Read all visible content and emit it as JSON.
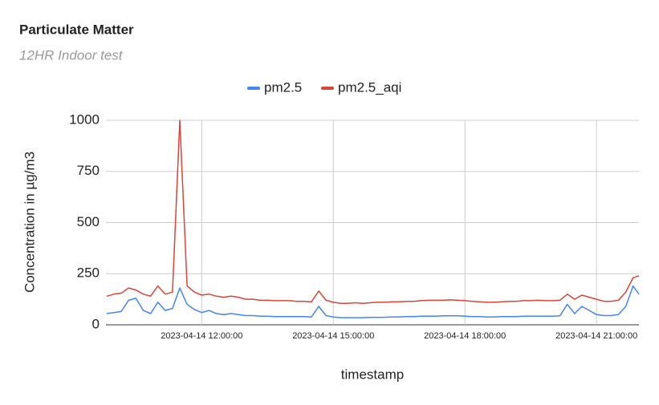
{
  "chart_data": {
    "type": "line",
    "title": "Particulate Matter",
    "subtitle": "12HR Indoor test",
    "x_label": "timestamp",
    "y_label": "Concentration in µg/m3",
    "x": [
      "2023-04-14 09:50:00",
      "2023-04-14 10:00:00",
      "2023-04-14 10:10:00",
      "2023-04-14 10:20:00",
      "2023-04-14 10:30:00",
      "2023-04-14 10:40:00",
      "2023-04-14 10:50:00",
      "2023-04-14 11:00:00",
      "2023-04-14 11:10:00",
      "2023-04-14 11:20:00",
      "2023-04-14 11:30:00",
      "2023-04-14 11:40:00",
      "2023-04-14 11:50:00",
      "2023-04-14 12:00:00",
      "2023-04-14 12:10:00",
      "2023-04-14 12:20:00",
      "2023-04-14 12:30:00",
      "2023-04-14 12:40:00",
      "2023-04-14 12:50:00",
      "2023-04-14 13:00:00",
      "2023-04-14 13:10:00",
      "2023-04-14 13:20:00",
      "2023-04-14 13:30:00",
      "2023-04-14 13:40:00",
      "2023-04-14 13:50:00",
      "2023-04-14 14:00:00",
      "2023-04-14 14:10:00",
      "2023-04-14 14:20:00",
      "2023-04-14 14:30:00",
      "2023-04-14 14:40:00",
      "2023-04-14 14:50:00",
      "2023-04-14 15:00:00",
      "2023-04-14 15:10:00",
      "2023-04-14 15:20:00",
      "2023-04-14 15:30:00",
      "2023-04-14 15:40:00",
      "2023-04-14 15:50:00",
      "2023-04-14 16:00:00",
      "2023-04-14 16:10:00",
      "2023-04-14 16:20:00",
      "2023-04-14 16:30:00",
      "2023-04-14 16:40:00",
      "2023-04-14 16:50:00",
      "2023-04-14 17:00:00",
      "2023-04-14 17:10:00",
      "2023-04-14 17:20:00",
      "2023-04-14 17:30:00",
      "2023-04-14 17:40:00",
      "2023-04-14 17:50:00",
      "2023-04-14 18:00:00",
      "2023-04-14 18:10:00",
      "2023-04-14 18:20:00",
      "2023-04-14 18:30:00",
      "2023-04-14 18:40:00",
      "2023-04-14 18:50:00",
      "2023-04-14 19:00:00",
      "2023-04-14 19:10:00",
      "2023-04-14 19:20:00",
      "2023-04-14 19:30:00",
      "2023-04-14 19:40:00",
      "2023-04-14 19:50:00",
      "2023-04-14 20:00:00",
      "2023-04-14 20:10:00",
      "2023-04-14 20:20:00",
      "2023-04-14 20:30:00",
      "2023-04-14 20:40:00",
      "2023-04-14 20:50:00",
      "2023-04-14 21:00:00",
      "2023-04-14 21:10:00",
      "2023-04-14 21:20:00",
      "2023-04-14 21:30:00",
      "2023-04-14 21:40:00",
      "2023-04-14 21:50:00",
      "2023-04-14 21:58:00"
    ],
    "series": [
      {
        "name": "pm2.5",
        "color": "#4285f4",
        "values": [
          55,
          60,
          65,
          120,
          130,
          70,
          55,
          110,
          70,
          80,
          180,
          100,
          75,
          60,
          70,
          55,
          50,
          55,
          50,
          45,
          45,
          42,
          42,
          40,
          40,
          40,
          40,
          40,
          38,
          90,
          45,
          38,
          35,
          35,
          35,
          35,
          36,
          36,
          37,
          38,
          38,
          40,
          40,
          42,
          42,
          42,
          44,
          44,
          44,
          42,
          40,
          40,
          38,
          38,
          40,
          40,
          40,
          42,
          42,
          42,
          42,
          42,
          44,
          100,
          55,
          90,
          70,
          50,
          45,
          45,
          50,
          90,
          190,
          150
        ]
      },
      {
        "name": "pm2.5_aqi",
        "color": "#db4437",
        "values": [
          140,
          150,
          155,
          180,
          170,
          150,
          140,
          190,
          150,
          160,
          1000,
          190,
          160,
          145,
          150,
          140,
          135,
          140,
          135,
          125,
          125,
          120,
          120,
          118,
          118,
          118,
          115,
          115,
          112,
          165,
          120,
          110,
          105,
          105,
          108,
          105,
          108,
          110,
          110,
          112,
          112,
          115,
          115,
          118,
          120,
          120,
          120,
          122,
          120,
          118,
          115,
          112,
          110,
          110,
          112,
          115,
          115,
          118,
          118,
          120,
          118,
          118,
          120,
          150,
          125,
          145,
          135,
          125,
          115,
          115,
          120,
          160,
          230,
          240
        ]
      }
    ],
    "xlim": [
      "2023-04-14 09:49:00",
      "2023-04-14 21:58:00"
    ],
    "xticks": [
      "2023-04-14 12:00:00",
      "2023-04-14 15:00:00",
      "2023-04-14 18:00:00",
      "2023-04-14 21:00:00"
    ],
    "ylim": [
      0,
      1000
    ],
    "yticks": [
      0,
      250,
      500,
      750,
      1000
    ],
    "grid": true,
    "legend": "top"
  }
}
